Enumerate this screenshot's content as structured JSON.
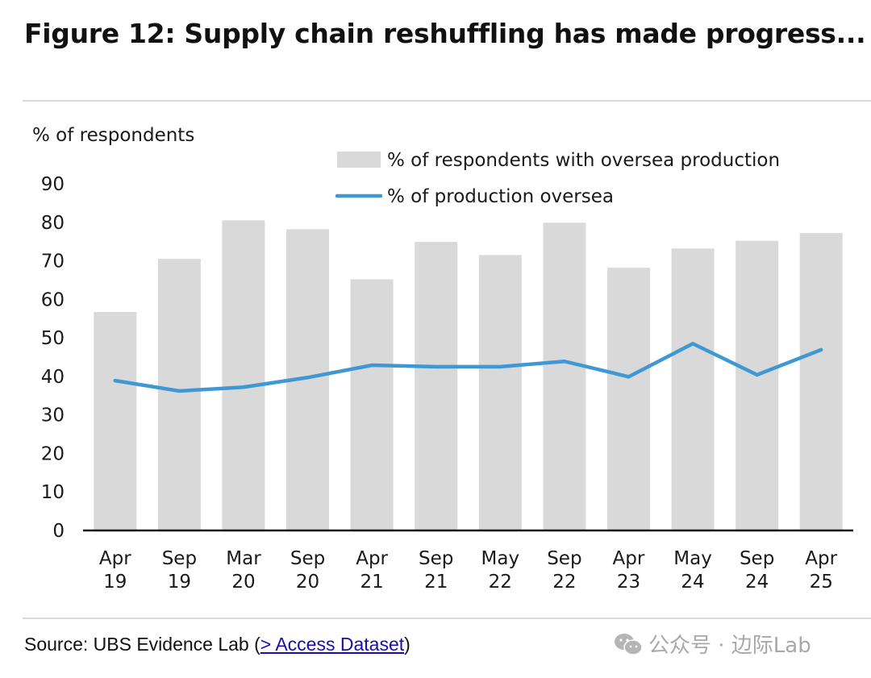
{
  "header": {
    "title": "Figure 12: Supply chain reshuffling has made progress..."
  },
  "footer": {
    "source_prefix": "Source: UBS Evidence Lab (",
    "source_link": "> Access Dataset",
    "source_suffix": ")",
    "watermark_text": "公众号 · 边际Lab",
    "watermark_icon": "wechat-icon"
  },
  "colors": {
    "bar": "#d9d9d9",
    "line": "#3f97d3",
    "axis": "#111111",
    "text": "#1a1a1a"
  },
  "chart_data": {
    "type": "bar",
    "title": "Figure 12: Supply chain reshuffling has made progress...",
    "ylabel": "% of respondents",
    "xlabel": "",
    "ylim": [
      0,
      90
    ],
    "yticks": [
      0,
      10,
      20,
      30,
      40,
      50,
      60,
      70,
      80,
      90
    ],
    "grid": false,
    "legend_position": "top-right",
    "categories": [
      [
        "Apr",
        "19"
      ],
      [
        "Sep",
        "19"
      ],
      [
        "Mar",
        "20"
      ],
      [
        "Sep",
        "20"
      ],
      [
        "Apr",
        "21"
      ],
      [
        "Sep",
        "21"
      ],
      [
        "May",
        "22"
      ],
      [
        "Sep",
        "22"
      ],
      [
        "Apr",
        "23"
      ],
      [
        "May",
        "24"
      ],
      [
        "Sep",
        "24"
      ],
      [
        "Apr",
        "25"
      ]
    ],
    "series": [
      {
        "name": "% of respondents with oversea production",
        "type": "bar",
        "values": [
          56.5,
          70.3,
          80.3,
          78.0,
          65.0,
          74.7,
          71.3,
          79.7,
          68.0,
          73.0,
          75.0,
          77.0
        ]
      },
      {
        "name": "% of production oversea",
        "type": "line",
        "values": [
          38.7,
          36.0,
          37.0,
          39.5,
          42.7,
          42.3,
          42.3,
          43.7,
          39.7,
          48.3,
          40.2,
          46.7
        ]
      }
    ]
  }
}
